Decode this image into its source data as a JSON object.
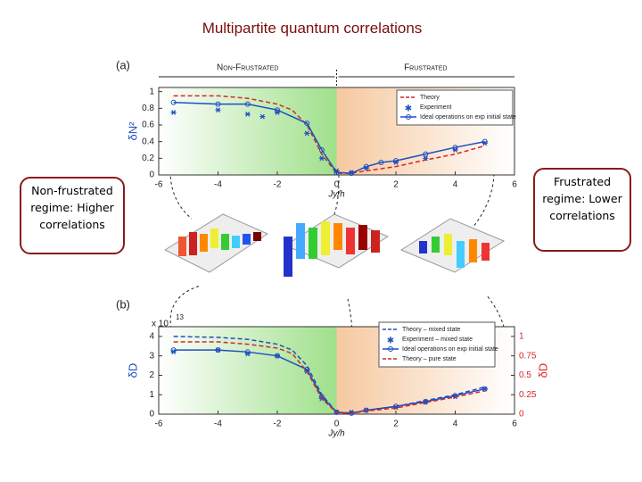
{
  "title": "Multipartite quantum correlations",
  "callouts": [
    "Non-frustrated regime: Higher correlations",
    "Frustrated regime: Lower correlations"
  ],
  "chart_data": [
    {
      "type": "line",
      "panel": "(a)",
      "regions": [
        "Non-Frustrated",
        "Frustrated"
      ],
      "xlabel": "Jy/h",
      "ylabel": "δN²",
      "xlim": [
        -6,
        6
      ],
      "xticks": [
        -6,
        -4,
        -2,
        0,
        2,
        4,
        6
      ],
      "ylim": [
        0,
        1.05
      ],
      "yticks": [
        0,
        0.2,
        0.4,
        0.6,
        0.8,
        1
      ],
      "series": [
        {
          "name": "Theory",
          "color": "#d62728",
          "dash": true,
          "line": true,
          "marker": null,
          "x": [
            -5.5,
            -4,
            -3,
            -2,
            -1.5,
            -1,
            -0.5,
            0,
            0.5,
            1,
            2,
            3,
            4,
            5
          ],
          "values": [
            0.95,
            0.95,
            0.92,
            0.85,
            0.78,
            0.6,
            0.25,
            0.02,
            0.02,
            0.05,
            0.1,
            0.18,
            0.25,
            0.35
          ]
        },
        {
          "name": "Experiment",
          "color": "#1f4fbf",
          "dash": false,
          "line": false,
          "marker": "star",
          "x": [
            -5.5,
            -4,
            -3,
            -2.5,
            -2,
            -1,
            -0.5,
            0,
            0.5,
            1,
            2,
            3,
            4,
            5
          ],
          "values": [
            0.75,
            0.78,
            0.73,
            0.7,
            0.75,
            0.5,
            0.2,
            0.05,
            0.03,
            0.08,
            0.15,
            0.2,
            0.3,
            0.38
          ]
        },
        {
          "name": "Ideal operations on exp initial state",
          "color": "#1f4fbf",
          "dash": false,
          "line": true,
          "marker": "circle",
          "x": [
            -5.5,
            -4,
            -3,
            -2,
            -1,
            -0.5,
            0,
            0.5,
            1,
            1.5,
            2,
            3,
            4,
            5
          ],
          "values": [
            0.87,
            0.85,
            0.85,
            0.78,
            0.62,
            0.3,
            0.03,
            0.02,
            0.1,
            0.15,
            0.17,
            0.25,
            0.33,
            0.4
          ]
        }
      ]
    },
    {
      "type": "line",
      "panel": "(b)",
      "xlabel": "Jy/h",
      "ylabel": "δD",
      "y2label": "δD",
      "y_scale_label": "x 10",
      "y_scale_exponent": "13",
      "xlim": [
        -6,
        6
      ],
      "xticks": [
        -6,
        -4,
        -2,
        0,
        2,
        4,
        6
      ],
      "ylim": [
        0,
        4.5
      ],
      "yticks": [
        0,
        1,
        2,
        3,
        4
      ],
      "y2lim": [
        0,
        1.125
      ],
      "y2ticks": [
        0,
        0.25,
        0.5,
        0.75,
        1
      ],
      "series": [
        {
          "name": "Theory – mixed state",
          "color": "#1f4fbf",
          "dash": true,
          "line": true,
          "marker": null,
          "x": [
            -5.5,
            -4,
            -3,
            -2,
            -1.5,
            -1,
            -0.5,
            0,
            0.5,
            1,
            2,
            3,
            4,
            5
          ],
          "values": [
            4,
            3.95,
            3.85,
            3.6,
            3.3,
            2.5,
            1,
            0.1,
            0.05,
            0.2,
            0.4,
            0.7,
            1.0,
            1.4
          ]
        },
        {
          "name": "Experiment – mixed state",
          "color": "#1f4fbf",
          "dash": false,
          "line": false,
          "marker": "star",
          "x": [
            -5.5,
            -4,
            -3,
            -2,
            -1,
            -0.5,
            0,
            0.5,
            1,
            2,
            3,
            4,
            5
          ],
          "values": [
            3.2,
            3.3,
            3.1,
            3.0,
            2.2,
            0.8,
            0.1,
            0.1,
            0.2,
            0.35,
            0.6,
            0.9,
            1.3
          ]
        },
        {
          "name": "Ideal operations on exp initial state",
          "color": "#1f4fbf",
          "dash": false,
          "line": true,
          "marker": "circle",
          "x": [
            -5.5,
            -4,
            -3,
            -2,
            -1,
            -0.5,
            0,
            0.5,
            1,
            2,
            3,
            4,
            5
          ],
          "values": [
            3.3,
            3.3,
            3.2,
            3.0,
            2.3,
            0.9,
            0.1,
            0.05,
            0.2,
            0.4,
            0.65,
            0.95,
            1.3
          ]
        },
        {
          "name": "Theory – pure state",
          "color": "#d62728",
          "dash": true,
          "line": true,
          "marker": null,
          "axis": "y2",
          "x": [
            -5.5,
            -4,
            -3,
            -2,
            -1.5,
            -1,
            -0.5,
            0,
            0.5,
            1,
            2,
            3,
            4,
            5
          ],
          "values": [
            0.93,
            0.93,
            0.9,
            0.85,
            0.78,
            0.55,
            0.2,
            0.02,
            0.01,
            0.04,
            0.08,
            0.15,
            0.22,
            0.3
          ]
        }
      ]
    }
  ]
}
